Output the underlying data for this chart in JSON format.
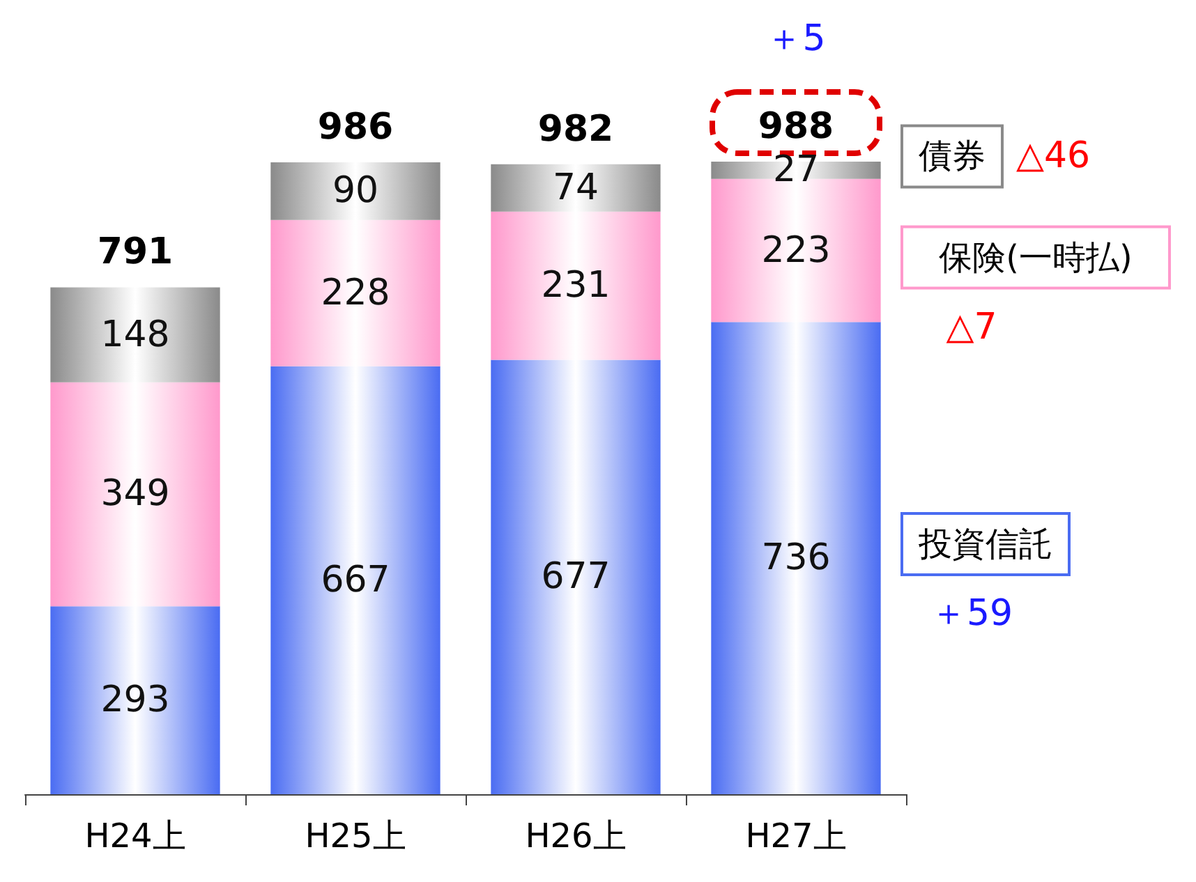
{
  "chart_data": {
    "type": "bar",
    "stacked": true,
    "data_labels": true,
    "categories": [
      "H24上",
      "H25上",
      "H26上",
      "H27上"
    ],
    "series": [
      {
        "name": "投資信託",
        "color": "#4a6cf2",
        "values": [
          293,
          667,
          677,
          736
        ]
      },
      {
        "name": "保険(一時払)",
        "color": "#ff99cc",
        "values": [
          349,
          228,
          231,
          223
        ]
      },
      {
        "name": "債券",
        "color": "#8a8a8a",
        "values": [
          148,
          90,
          74,
          27
        ]
      }
    ],
    "totals": [
      "791",
      "986",
      "982",
      "988"
    ],
    "annotations": [
      "＋5",
      "△46",
      "△7",
      "＋59"
    ]
  }
}
